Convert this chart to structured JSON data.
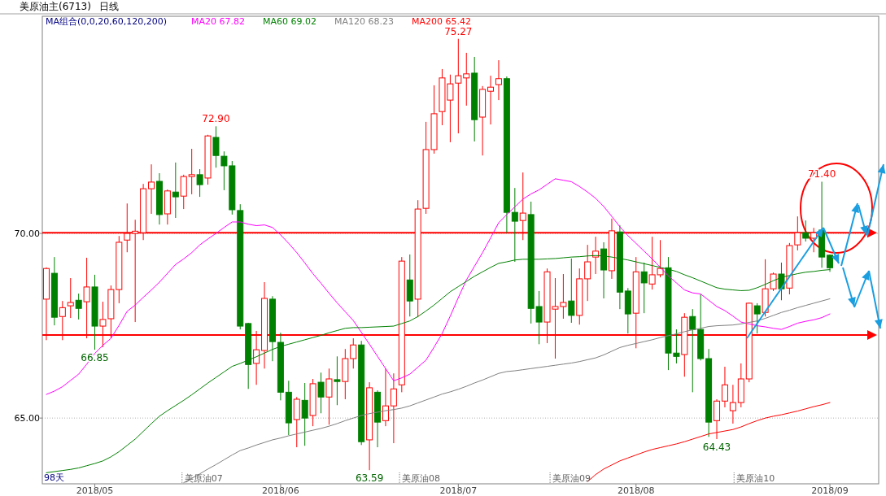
{
  "chart_data": {
    "type": "candlestick",
    "title": "美原油主(6713)",
    "subtitle": "日线",
    "categories": [
      null,
      null,
      null,
      null,
      null,
      null,
      "2018/05",
      null,
      null,
      null,
      null,
      null,
      null,
      null,
      null,
      null,
      null,
      null,
      null,
      null,
      null,
      null,
      null,
      null,
      null,
      null,
      null,
      null,
      null,
      "2018/06",
      null,
      null,
      null,
      null,
      null,
      null,
      null,
      null,
      null,
      null,
      null,
      null,
      null,
      null,
      null,
      null,
      null,
      null,
      null,
      null,
      null,
      "2018/07",
      null,
      null,
      null,
      null,
      null,
      null,
      null,
      null,
      null,
      null,
      null,
      null,
      null,
      null,
      null,
      null,
      null,
      null,
      null,
      null,
      null,
      "2018/08",
      null,
      null,
      null,
      null,
      null,
      null,
      null,
      null,
      null,
      null,
      null,
      null,
      null,
      null,
      null,
      null,
      null,
      null,
      null,
      null,
      null,
      null,
      null,
      "2018/09"
    ],
    "series": [
      {
        "ohlc": [
          [
            68.22,
            69.08,
            67.11,
            69.05
          ],
          [
            68.92,
            69.36,
            67.51,
            67.73
          ],
          [
            67.75,
            68.17,
            67.11,
            67.99
          ],
          [
            68.04,
            68.79,
            67.71,
            68.13
          ],
          [
            68.19,
            68.37,
            67.67,
            67.97
          ],
          [
            68.15,
            69.34,
            67.16,
            68.55
          ],
          [
            68.55,
            68.88,
            66.85,
            67.49
          ],
          [
            67.49,
            68.15,
            66.92,
            67.67
          ],
          [
            67.69,
            68.59,
            67.16,
            68.48
          ],
          [
            68.48,
            69.93,
            68.11,
            69.76
          ],
          [
            69.82,
            70.81,
            69.49,
            70.0
          ],
          [
            70.0,
            70.37,
            67.6,
            70.06
          ],
          [
            70.02,
            71.34,
            69.82,
            71.21
          ],
          [
            71.21,
            71.87,
            70.53,
            71.39
          ],
          [
            71.41,
            71.63,
            70.24,
            70.51
          ],
          [
            70.53,
            71.19,
            70.24,
            71.15
          ],
          [
            71.12,
            71.92,
            70.42,
            70.99
          ],
          [
            71.01,
            71.59,
            70.66,
            71.54
          ],
          [
            71.54,
            72.29,
            71.06,
            71.59
          ],
          [
            71.59,
            71.74,
            70.99,
            71.32
          ],
          [
            71.5,
            72.67,
            71.32,
            72.64
          ],
          [
            72.6,
            72.9,
            71.78,
            72.11
          ],
          [
            72.09,
            72.22,
            71.17,
            71.83
          ],
          [
            71.83,
            71.96,
            70.51,
            70.64
          ],
          [
            70.62,
            70.79,
            67.4,
            67.49
          ],
          [
            67.56,
            67.58,
            65.79,
            66.45
          ],
          [
            66.48,
            67.36,
            65.9,
            66.85
          ],
          [
            66.83,
            68.68,
            66.34,
            68.24
          ],
          [
            68.22,
            68.3,
            66.54,
            67.07
          ],
          [
            67.05,
            67.31,
            65.48,
            65.7
          ],
          [
            65.7,
            66.01,
            64.54,
            64.87
          ],
          [
            64.96,
            65.57,
            64.21,
            65.51
          ],
          [
            65.48,
            65.95,
            64.25,
            65.0
          ],
          [
            65.07,
            66.06,
            64.78,
            65.93
          ],
          [
            65.97,
            66.23,
            65.13,
            65.57
          ],
          [
            65.57,
            66.34,
            64.82,
            66.06
          ],
          [
            66.04,
            66.67,
            65.35,
            65.99
          ],
          [
            65.99,
            66.87,
            65.51,
            66.61
          ],
          [
            66.61,
            67.16,
            66.34,
            66.98
          ],
          [
            66.98,
            67.09,
            64.27,
            64.36
          ],
          [
            64.41,
            65.97,
            63.59,
            65.82
          ],
          [
            65.7,
            65.75,
            64.21,
            64.89
          ],
          [
            64.93,
            66.34,
            64.78,
            65.33
          ],
          [
            65.33,
            66.21,
            64.32,
            65.79
          ],
          [
            65.9,
            69.36,
            65.7,
            69.25
          ],
          [
            68.74,
            69.43,
            67.75,
            68.17
          ],
          [
            68.22,
            70.9,
            67.73,
            70.66
          ],
          [
            70.68,
            73.02,
            70.53,
            72.27
          ],
          [
            72.27,
            74.01,
            72.16,
            73.24
          ],
          [
            73.3,
            74.45,
            72.93,
            74.21
          ],
          [
            73.61,
            74.3,
            72.47,
            74.05
          ],
          [
            74.07,
            75.27,
            72.71,
            74.27
          ],
          [
            74.21,
            74.89,
            73.46,
            74.32
          ],
          [
            74.34,
            74.78,
            72.49,
            73.08
          ],
          [
            73.15,
            73.99,
            72.11,
            73.9
          ],
          [
            73.85,
            74.27,
            72.95,
            73.96
          ],
          [
            74.03,
            74.69,
            73.61,
            74.19
          ],
          [
            74.19,
            74.25,
            70.02,
            70.57
          ],
          [
            70.57,
            71.23,
            69.23,
            70.33
          ],
          [
            70.35,
            71.65,
            69.82,
            70.55
          ],
          [
            70.51,
            70.86,
            67.56,
            67.97
          ],
          [
            68.02,
            68.44,
            67.0,
            67.6
          ],
          [
            67.6,
            69.05,
            67.03,
            68.96
          ],
          [
            67.95,
            68.79,
            66.61,
            68.02
          ],
          [
            68.02,
            68.9,
            67.69,
            68.13
          ],
          [
            68.17,
            69.32,
            67.58,
            67.78
          ],
          [
            67.78,
            69.05,
            67.53,
            68.77
          ],
          [
            68.77,
            69.69,
            68.17,
            69.23
          ],
          [
            69.36,
            69.91,
            68.9,
            69.52
          ],
          [
            69.58,
            69.76,
            68.24,
            69.01
          ],
          [
            68.99,
            70.4,
            68.77,
            70.07
          ],
          [
            70.04,
            70.22,
            67.95,
            68.41
          ],
          [
            68.44,
            68.52,
            67.29,
            67.82
          ],
          [
            67.84,
            69.36,
            66.89,
            68.96
          ],
          [
            68.96,
            69.21,
            67.84,
            68.66
          ],
          [
            68.63,
            69.91,
            68.48,
            68.88
          ],
          [
            68.88,
            69.82,
            68.81,
            69.05
          ],
          [
            69.07,
            69.36,
            66.3,
            66.76
          ],
          [
            66.76,
            67.4,
            66.48,
            66.67
          ],
          [
            66.72,
            67.84,
            66.12,
            67.73
          ],
          [
            67.75,
            67.95,
            65.7,
            67.4
          ],
          [
            67.4,
            68.35,
            66.56,
            66.61
          ],
          [
            66.61,
            66.87,
            64.49,
            64.89
          ],
          [
            64.93,
            65.51,
            64.43,
            65.46
          ],
          [
            65.46,
            66.39,
            65.29,
            65.9
          ],
          [
            65.2,
            65.9,
            64.85,
            65.42
          ],
          [
            65.42,
            66.48,
            65.29,
            66.06
          ],
          [
            66.06,
            68.13,
            65.97,
            68.11
          ],
          [
            68.04,
            68.11,
            67.29,
            67.82
          ],
          [
            67.86,
            69.3,
            67.75,
            68.5
          ],
          [
            68.5,
            68.94,
            68.44,
            68.9
          ],
          [
            68.9,
            69.21,
            68.19,
            68.5
          ],
          [
            68.52,
            69.74,
            68.35,
            69.67
          ],
          [
            69.69,
            70.46,
            69.54,
            70.02
          ],
          [
            70.02,
            70.35,
            69.78,
            69.87
          ],
          [
            69.87,
            70.15,
            69.49,
            70.02
          ],
          [
            70.09,
            71.4,
            69.07,
            69.36
          ],
          [
            69.41,
            69.43,
            68.96,
            69.07
          ]
        ],
        "colors": [
          "#ff0000",
          "#008000",
          "#ff0000",
          "#ff0000",
          "#008000",
          "#ff0000",
          "#008000",
          "#ff0000",
          "#ff0000",
          "#ff0000",
          "#ff0000",
          "#ff0000",
          "#ff0000",
          "#ff0000",
          "#008000",
          "#ff0000",
          "#008000",
          "#ff0000",
          "#ff0000",
          "#008000",
          "#ff0000",
          "#008000",
          "#008000",
          "#008000",
          "#008000",
          "#008000",
          "#ff0000",
          "#ff0000",
          "#008000",
          "#008000",
          "#008000",
          "#ff0000",
          "#008000",
          "#ff0000",
          "#008000",
          "#ff0000",
          "#008000",
          "#ff0000",
          "#ff0000",
          "#008000",
          "#ff0000",
          "#008000",
          "#ff0000",
          "#ff0000",
          "#ff0000",
          "#008000",
          "#ff0000",
          "#ff0000",
          "#ff0000",
          "#ff0000",
          "#ff0000",
          "#ff0000",
          "#ff0000",
          "#008000",
          "#ff0000",
          "#ff0000",
          "#ff0000",
          "#008000",
          "#008000",
          "#ff0000",
          "#008000",
          "#008000",
          "#ff0000",
          "#ff0000",
          "#ff0000",
          "#008000",
          "#ff0000",
          "#ff0000",
          "#ff0000",
          "#008000",
          "#ff0000",
          "#008000",
          "#008000",
          "#ff0000",
          "#008000",
          "#ff0000",
          "#ff0000",
          "#008000",
          "#008000",
          "#ff0000",
          "#008000",
          "#008000",
          "#008000",
          "#ff0000",
          "#ff0000",
          "#ff0000",
          "#ff0000",
          "#ff0000",
          "#008000",
          "#ff0000",
          "#ff0000",
          "#008000",
          "#ff0000",
          "#ff0000",
          "#008000",
          "#ff0000",
          "#008000",
          "#008000"
        ]
      },
      {
        "type": "line",
        "name": "MA20 67.82",
        "color": "#ff00ff",
        "values": [
          65.64,
          65.73,
          65.85,
          66.02,
          66.19,
          66.46,
          66.75,
          66.97,
          67.16,
          67.51,
          67.89,
          68.06,
          68.27,
          68.47,
          68.68,
          68.92,
          69.16,
          69.31,
          69.48,
          69.69,
          69.85,
          70.0,
          70.16,
          70.31,
          70.31,
          70.25,
          70.21,
          70.23,
          70.16,
          69.96,
          69.73,
          69.48,
          69.2,
          68.91,
          68.65,
          68.38,
          68.12,
          67.88,
          67.64,
          67.32,
          67.0,
          66.67,
          66.34,
          66.01,
          66.09,
          66.19,
          66.38,
          66.57,
          66.92,
          67.29,
          67.76,
          68.26,
          68.74,
          69.11,
          69.48,
          69.88,
          70.29,
          70.51,
          70.72,
          70.93,
          71.07,
          71.18,
          71.33,
          71.48,
          71.44,
          71.4,
          71.27,
          71.12,
          70.95,
          70.73,
          70.46,
          70.18,
          69.94,
          69.73,
          69.52,
          69.31,
          69.08,
          68.85,
          68.66,
          68.47,
          68.39,
          68.36,
          68.19,
          68.02,
          67.91,
          67.76,
          67.6,
          67.55,
          67.5,
          67.47,
          67.43,
          67.4,
          67.48,
          67.57,
          67.62,
          67.66,
          67.72,
          67.82
        ]
      },
      {
        "type": "line",
        "name": "MA60 69.02",
        "color": "#008000",
        "values": [
          63.52,
          63.55,
          63.58,
          63.61,
          63.65,
          63.71,
          63.77,
          63.84,
          63.95,
          64.09,
          64.26,
          64.43,
          64.64,
          64.85,
          65.05,
          65.2,
          65.34,
          65.48,
          65.63,
          65.79,
          65.95,
          66.1,
          66.25,
          66.4,
          66.48,
          66.57,
          66.66,
          66.76,
          66.86,
          66.94,
          67.0,
          67.06,
          67.12,
          67.18,
          67.24,
          67.31,
          67.37,
          67.43,
          67.45,
          67.45,
          67.46,
          67.47,
          67.48,
          67.49,
          67.56,
          67.63,
          67.75,
          67.9,
          68.06,
          68.24,
          68.42,
          68.56,
          68.7,
          68.84,
          68.96,
          69.08,
          69.19,
          69.23,
          69.28,
          69.3,
          69.3,
          69.3,
          69.31,
          69.32,
          69.34,
          69.36,
          69.37,
          69.39,
          69.4,
          69.39,
          69.36,
          69.32,
          69.28,
          69.23,
          69.18,
          69.13,
          69.08,
          69.03,
          68.97,
          68.88,
          68.8,
          68.71,
          68.62,
          68.53,
          68.49,
          68.47,
          68.45,
          68.46,
          68.53,
          68.62,
          68.72,
          68.81,
          68.86,
          68.91,
          68.95,
          68.97,
          69.0,
          69.02
        ]
      },
      {
        "type": "line",
        "name": "MA120 68.23",
        "color": "#808080",
        "values": [
          null,
          null,
          null,
          null,
          null,
          null,
          null,
          null,
          null,
          null,
          null,
          null,
          null,
          null,
          null,
          null,
          null,
          63.25,
          63.37,
          63.49,
          63.62,
          63.74,
          63.87,
          64.0,
          64.12,
          64.19,
          64.27,
          64.34,
          64.41,
          64.46,
          64.52,
          64.57,
          64.62,
          64.67,
          64.72,
          64.78,
          64.85,
          64.93,
          65.0,
          65.07,
          65.12,
          65.16,
          65.2,
          65.23,
          65.27,
          65.33,
          65.41,
          65.49,
          65.57,
          65.65,
          65.71,
          65.78,
          65.86,
          65.95,
          66.03,
          66.12,
          66.21,
          66.26,
          66.28,
          66.31,
          66.34,
          66.37,
          66.4,
          66.43,
          66.46,
          66.49,
          66.53,
          66.58,
          66.63,
          66.71,
          66.81,
          66.91,
          66.97,
          67.02,
          67.07,
          67.12,
          67.18,
          67.23,
          67.28,
          67.34,
          67.39,
          67.43,
          67.48,
          67.5,
          67.51,
          67.52,
          67.55,
          67.59,
          67.63,
          67.7,
          67.78,
          67.86,
          67.92,
          67.99,
          68.05,
          68.11,
          68.17,
          68.23
        ]
      },
      {
        "type": "line",
        "name": "MA200 65.42",
        "color": "#ff0000",
        "values": [
          null,
          null,
          null,
          null,
          null,
          null,
          null,
          null,
          null,
          null,
          null,
          null,
          null,
          null,
          null,
          null,
          null,
          null,
          null,
          null,
          null,
          null,
          null,
          null,
          null,
          null,
          null,
          null,
          null,
          null,
          null,
          null,
          null,
          null,
          null,
          null,
          null,
          null,
          null,
          null,
          null,
          null,
          null,
          null,
          null,
          null,
          null,
          null,
          null,
          null,
          null,
          null,
          null,
          null,
          null,
          null,
          null,
          null,
          null,
          null,
          null,
          null,
          null,
          null,
          null,
          null,
          null,
          63.28,
          63.47,
          63.62,
          63.73,
          63.84,
          63.92,
          64.0,
          64.08,
          64.15,
          64.2,
          64.25,
          64.3,
          64.36,
          64.43,
          64.5,
          64.57,
          64.61,
          64.65,
          64.69,
          64.76,
          64.85,
          64.93,
          65.0,
          65.05,
          65.09,
          65.14,
          65.19,
          65.25,
          65.31,
          65.36,
          65.42
        ]
      }
    ],
    "ylim": [
      63.22,
      75.88
    ],
    "yticks": [
      {
        "value": 65,
        "label": "65.00"
      },
      {
        "value": 70,
        "label": "70.00"
      }
    ],
    "grid": "y",
    "legend": "top",
    "ref_lines": [
      {
        "axis": "y",
        "value": 70.02,
        "label": null,
        "color": "#ff0000"
      },
      {
        "axis": "y",
        "value": 67.25,
        "label": null,
        "color": "#ff0000"
      }
    ],
    "annotations": [
      {
        "text": "72.90",
        "y": 72.9
      },
      {
        "text": "75.27",
        "y": 75.27
      },
      {
        "text": "71.40",
        "y": 71.4
      },
      {
        "text": "66.85",
        "y": 66.85
      },
      {
        "text": "63.59",
        "y": 63.59
      },
      {
        "text": "64.43",
        "y": 64.43
      },
      "MA组合(0,0,20,60,120,200)",
      "98天",
      "美原油07",
      "美原油08",
      "美原油09",
      "美原油10"
    ]
  }
}
